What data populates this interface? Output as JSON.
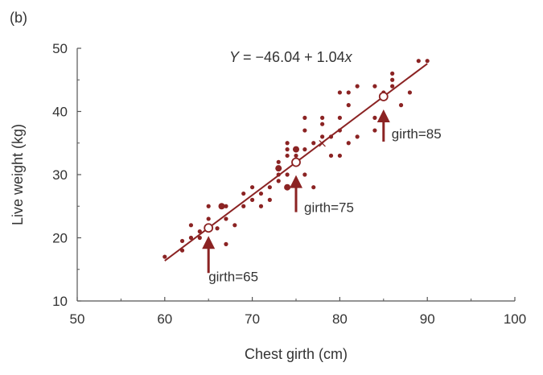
{
  "panel_label": "(b)",
  "chart_data": {
    "type": "scatter",
    "xlabel": "Chest girth (cm)",
    "ylabel": "Live weight (kg)",
    "xlim": [
      50,
      100
    ],
    "ylim": [
      10,
      50
    ],
    "x_ticks": [
      50,
      60,
      70,
      80,
      90,
      100
    ],
    "y_ticks": [
      10,
      20,
      30,
      40,
      50
    ],
    "x_tick_labels": [
      "50",
      "60",
      "70",
      "80",
      "90",
      "100"
    ],
    "y_tick_labels": [
      "10",
      "20",
      "30",
      "40",
      "50"
    ],
    "grid": false,
    "colors": {
      "data": "#8b2323",
      "axis": "#555555",
      "text": "#333333"
    },
    "equation": {
      "prefix": "Y",
      "body": " = −46.04 + 1.04",
      "var": "x"
    },
    "regression": {
      "intercept": -46.04,
      "slope": 1.04,
      "x_range": [
        60,
        90
      ]
    },
    "mean_point": {
      "x": 78,
      "y": 35
    },
    "points": [
      [
        60,
        17
      ],
      [
        62,
        18
      ],
      [
        62,
        19.5
      ],
      [
        63,
        20
      ],
      [
        63,
        22
      ],
      [
        64,
        20
      ],
      [
        64,
        21
      ],
      [
        65,
        23
      ],
      [
        65,
        25
      ],
      [
        66,
        21.5
      ],
      [
        67,
        25
      ],
      [
        67,
        23
      ],
      [
        67,
        19
      ],
      [
        68,
        22
      ],
      [
        69,
        25
      ],
      [
        69,
        27
      ],
      [
        70,
        28
      ],
      [
        70,
        26
      ],
      [
        71,
        27
      ],
      [
        71,
        25
      ],
      [
        72,
        28
      ],
      [
        72,
        26
      ],
      [
        73,
        29
      ],
      [
        73,
        30
      ],
      [
        73,
        31
      ],
      [
        73,
        32
      ],
      [
        74,
        28
      ],
      [
        74,
        30
      ],
      [
        74,
        33
      ],
      [
        74,
        34
      ],
      [
        74,
        35
      ],
      [
        75,
        29
      ],
      [
        75,
        33
      ],
      [
        76,
        30
      ],
      [
        76,
        34
      ],
      [
        76,
        37
      ],
      [
        76,
        39
      ],
      [
        77,
        28
      ],
      [
        77,
        35
      ],
      [
        78,
        36
      ],
      [
        78,
        38
      ],
      [
        78,
        39
      ],
      [
        79,
        33
      ],
      [
        79,
        36
      ],
      [
        80,
        33
      ],
      [
        80,
        37
      ],
      [
        80,
        39
      ],
      [
        80,
        43
      ],
      [
        81,
        35
      ],
      [
        81,
        41
      ],
      [
        81,
        43
      ],
      [
        82,
        36
      ],
      [
        82,
        44
      ],
      [
        84,
        37
      ],
      [
        84,
        39
      ],
      [
        84,
        44
      ],
      [
        85,
        43
      ],
      [
        86,
        44
      ],
      [
        86,
        45
      ],
      [
        86,
        46
      ],
      [
        87,
        41
      ],
      [
        88,
        43
      ],
      [
        89,
        48
      ],
      [
        90,
        48
      ]
    ],
    "large_points": [
      [
        66.5,
        25
      ],
      [
        73,
        31
      ],
      [
        74,
        28
      ],
      [
        75,
        34
      ]
    ],
    "highlighted": [
      {
        "x": 65,
        "y": 21.56,
        "label": "girth=65"
      },
      {
        "x": 75,
        "y": 31.96,
        "label": "girth=75"
      },
      {
        "x": 85,
        "y": 42.36,
        "label": "girth=85"
      }
    ]
  }
}
